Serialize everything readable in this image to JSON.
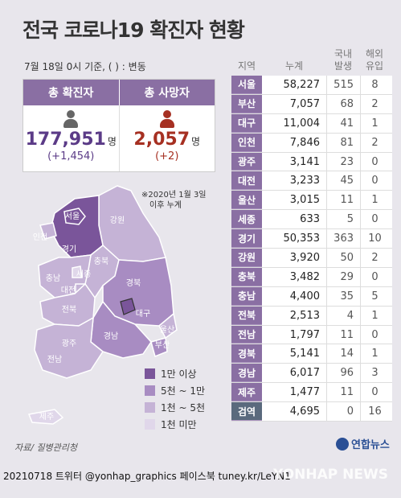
{
  "title": "전국 코로나19 확진자 현황",
  "date_note": "7월 18일 0시 기준, ( ) : 변동",
  "summary": {
    "confirmed_label": "총 확진자",
    "deaths_label": "총 사망자",
    "confirmed": "177,951",
    "confirmed_delta": "(+1,454)",
    "deaths": "2,057",
    "deaths_delta": "(+2)",
    "unit": "명"
  },
  "map_note": [
    "※2020년 1월 3일",
    "이후 누계"
  ],
  "map_labels": [
    "서울",
    "인천",
    "경기",
    "강원",
    "충북",
    "세종",
    "충남",
    "대전",
    "경북",
    "대구",
    "전북",
    "울산",
    "광주",
    "부산",
    "경남",
    "전남",
    "제주"
  ],
  "legend": [
    {
      "label": "1만 이상",
      "color": "#7a559a"
    },
    {
      "label": "5천 ~ 1만",
      "color": "#a88cc2"
    },
    {
      "label": "1천 ~ 5천",
      "color": "#c5b3d6"
    },
    {
      "label": "1천 미만",
      "color": "#e0d7ea"
    }
  ],
  "table": {
    "headers": [
      "지역",
      "누계",
      "국내\n발생",
      "해외\n유입"
    ],
    "rows": [
      {
        "region": "서울",
        "total": "58,227",
        "domestic": "515",
        "overseas": "8"
      },
      {
        "region": "부산",
        "total": "7,057",
        "domestic": "68",
        "overseas": "2"
      },
      {
        "region": "대구",
        "total": "11,004",
        "domestic": "41",
        "overseas": "1"
      },
      {
        "region": "인천",
        "total": "7,846",
        "domestic": "81",
        "overseas": "2"
      },
      {
        "region": "광주",
        "total": "3,141",
        "domestic": "23",
        "overseas": "0"
      },
      {
        "region": "대전",
        "total": "3,233",
        "domestic": "45",
        "overseas": "0"
      },
      {
        "region": "울산",
        "total": "3,015",
        "domestic": "11",
        "overseas": "1"
      },
      {
        "region": "세종",
        "total": "633",
        "domestic": "5",
        "overseas": "0"
      },
      {
        "region": "경기",
        "total": "50,353",
        "domestic": "363",
        "overseas": "10"
      },
      {
        "region": "강원",
        "total": "3,920",
        "domestic": "50",
        "overseas": "2"
      },
      {
        "region": "충북",
        "total": "3,482",
        "domestic": "29",
        "overseas": "0"
      },
      {
        "region": "충남",
        "total": "4,400",
        "domestic": "35",
        "overseas": "5"
      },
      {
        "region": "전북",
        "total": "2,513",
        "domestic": "4",
        "overseas": "1"
      },
      {
        "region": "전남",
        "total": "1,797",
        "domestic": "11",
        "overseas": "0"
      },
      {
        "region": "경북",
        "total": "5,141",
        "domestic": "14",
        "overseas": "1"
      },
      {
        "region": "경남",
        "total": "6,017",
        "domestic": "96",
        "overseas": "3"
      },
      {
        "region": "제주",
        "total": "1,477",
        "domestic": "11",
        "overseas": "0"
      },
      {
        "region": "검역",
        "total": "4,695",
        "domestic": "0",
        "overseas": "16"
      }
    ]
  },
  "source": "자료/ 질병관리청",
  "brand": "연합뉴스",
  "footer": "20210718 트위터 @yonhap_graphics  페이스북 tuney.kr/LeYN1",
  "watermark": "YONHAP NEWS"
}
